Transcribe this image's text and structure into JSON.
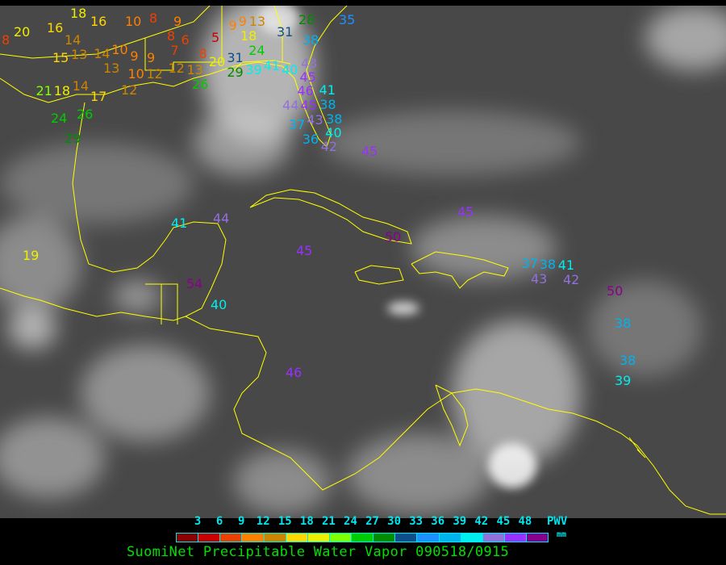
{
  "title": "SuomiNet Precipitable Water Vapor 090518/0915",
  "legend": {
    "unit_label": "PWV",
    "unit": "mm",
    "ticks": [
      "3",
      "6",
      "9",
      "12",
      "15",
      "18",
      "21",
      "24",
      "27",
      "30",
      "33",
      "36",
      "39",
      "42",
      "45",
      "48"
    ],
    "colors": [
      "#8b0000",
      "#cc0000",
      "#ee4000",
      "#ff8000",
      "#cd8500",
      "#ffd700",
      "#eeee00",
      "#80ff00",
      "#00cd00",
      "#008b00",
      "#104e8b",
      "#1e90ff",
      "#00b2ee",
      "#00eeee",
      "#9370db",
      "#9b30ff",
      "#8b008b"
    ]
  },
  "coastline_color": "#ffff00",
  "stations": [
    {
      "value": "8"
    },
    {
      "value": "20"
    },
    {
      "value": "16"
    },
    {
      "value": "18"
    },
    {
      "value": "16"
    },
    {
      "value": "10"
    },
    {
      "value": "8"
    },
    {
      "value": "9"
    },
    {
      "value": "14"
    },
    {
      "value": "15"
    },
    {
      "value": "13"
    },
    {
      "value": "14"
    },
    {
      "value": "10"
    },
    {
      "value": "9"
    },
    {
      "value": "9"
    },
    {
      "value": "13"
    },
    {
      "value": "10"
    },
    {
      "value": "12"
    },
    {
      "value": "8"
    },
    {
      "value": "7"
    },
    {
      "value": "6"
    },
    {
      "value": "8"
    },
    {
      "value": "5"
    },
    {
      "value": "9"
    },
    {
      "value": "9"
    },
    {
      "value": "13"
    },
    {
      "value": "18"
    },
    {
      "value": "24"
    },
    {
      "value": "12"
    },
    {
      "value": "13"
    },
    {
      "value": "20"
    },
    {
      "value": "29"
    },
    {
      "value": "31"
    },
    {
      "value": "39"
    },
    {
      "value": "41"
    },
    {
      "value": "40"
    },
    {
      "value": "28"
    },
    {
      "value": "35"
    },
    {
      "value": "31"
    },
    {
      "value": "38"
    },
    {
      "value": "43"
    },
    {
      "value": "45"
    },
    {
      "value": "46"
    },
    {
      "value": "41"
    },
    {
      "value": "44"
    },
    {
      "value": "45"
    },
    {
      "value": "38"
    },
    {
      "value": "43"
    },
    {
      "value": "38"
    },
    {
      "value": "37"
    },
    {
      "value": "40"
    },
    {
      "value": "36"
    },
    {
      "value": "42"
    },
    {
      "value": "26"
    },
    {
      "value": "12"
    },
    {
      "value": "17"
    },
    {
      "value": "14"
    },
    {
      "value": "18"
    },
    {
      "value": "21"
    },
    {
      "value": "24"
    },
    {
      "value": "26"
    },
    {
      "value": "29"
    },
    {
      "value": "45"
    },
    {
      "value": "44"
    },
    {
      "value": "41"
    },
    {
      "value": "19"
    },
    {
      "value": "45"
    },
    {
      "value": "50"
    },
    {
      "value": "45"
    },
    {
      "value": "54"
    },
    {
      "value": "40"
    },
    {
      "value": "46"
    },
    {
      "value": "37"
    },
    {
      "value": "38"
    },
    {
      "value": "41"
    },
    {
      "value": "43"
    },
    {
      "value": "42"
    },
    {
      "value": "50"
    },
    {
      "value": "38"
    },
    {
      "value": "38"
    },
    {
      "value": "39"
    }
  ]
}
